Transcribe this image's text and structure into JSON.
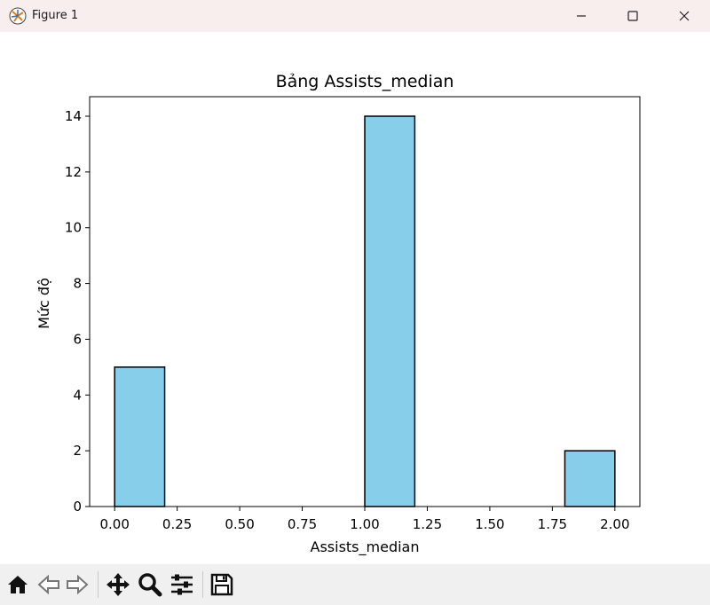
{
  "window": {
    "title": "Figure 1",
    "colors": {
      "titlebar": "#f9eeee",
      "toolbar": "#f0f0f0"
    }
  },
  "toolbar": {
    "buttons": [
      "home-icon",
      "back-icon",
      "forward-icon",
      "pan-icon",
      "zoom-icon",
      "configure-subplots-icon",
      "save-icon"
    ]
  },
  "chart_data": {
    "type": "bar",
    "title": "Bảng Assists_median",
    "xlabel": "Assists_median",
    "ylabel": "Mức độ",
    "bins": [
      {
        "x0": 0.0,
        "x1": 0.2,
        "value": 5
      },
      {
        "x0": 0.2,
        "x1": 0.4,
        "value": 0
      },
      {
        "x0": 0.4,
        "x1": 0.6,
        "value": 0
      },
      {
        "x0": 0.6,
        "x1": 0.8,
        "value": 0
      },
      {
        "x0": 0.8,
        "x1": 1.0,
        "value": 0
      },
      {
        "x0": 1.0,
        "x1": 1.2,
        "value": 14
      },
      {
        "x0": 1.2,
        "x1": 1.4,
        "value": 0
      },
      {
        "x0": 1.4,
        "x1": 1.6,
        "value": 0
      },
      {
        "x0": 1.6,
        "x1": 1.8,
        "value": 0
      },
      {
        "x0": 1.8,
        "x1": 2.0,
        "value": 2
      }
    ],
    "xlim": [
      -0.1,
      2.1
    ],
    "ylim": [
      0,
      14.7
    ],
    "xticks": [
      "0.00",
      "0.25",
      "0.50",
      "0.75",
      "1.00",
      "1.25",
      "1.50",
      "1.75",
      "2.00"
    ],
    "yticks": [
      "0",
      "2",
      "4",
      "6",
      "8",
      "10",
      "12",
      "14"
    ],
    "grid": false,
    "colors": {
      "bar": "#87ceeb",
      "edge": "#000000"
    }
  }
}
